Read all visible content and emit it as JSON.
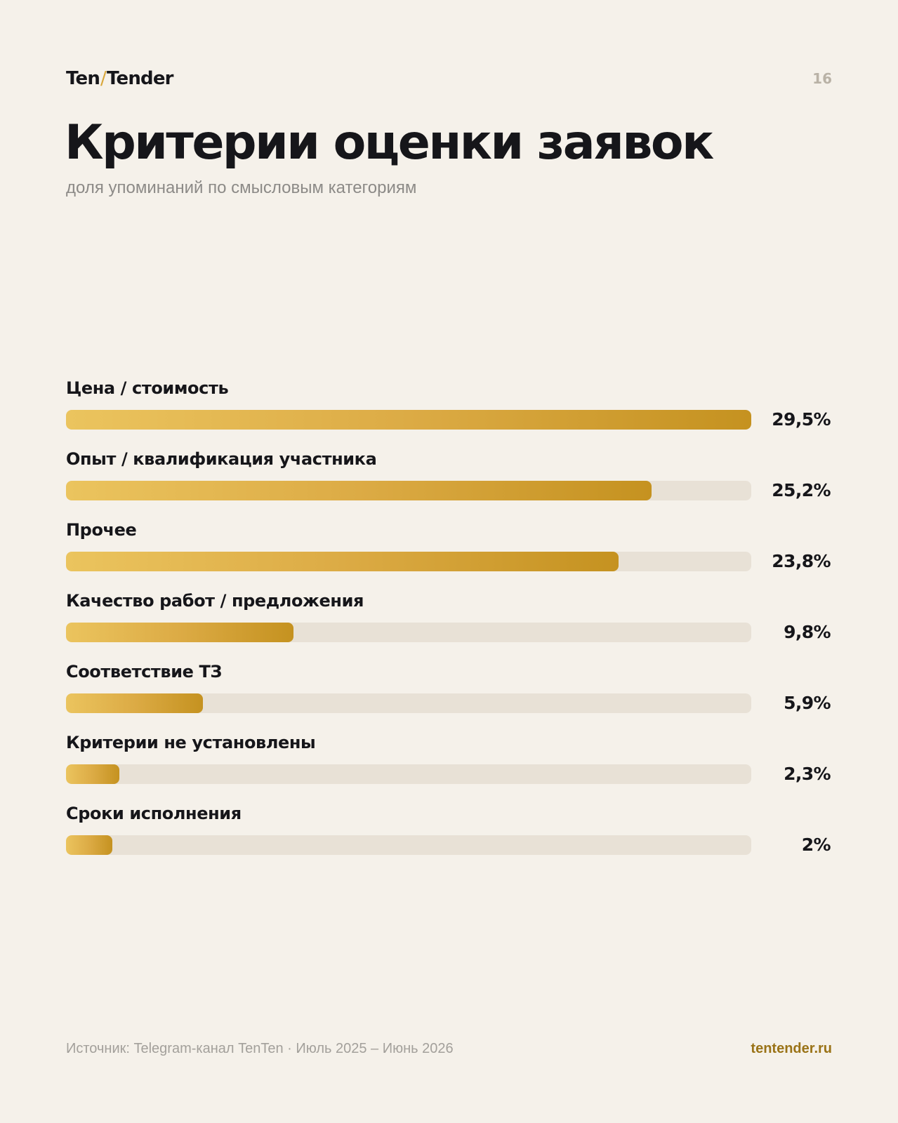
{
  "header": {
    "logo_left": "Ten",
    "logo_sep": "/",
    "logo_right": "Tender",
    "page_number": "16"
  },
  "colors": {
    "background": "#f5f1ea",
    "bar_start": "#ebc45e",
    "bar_end": "#c59220",
    "track": "#e8e1d6",
    "accent_link": "#9a7317"
  },
  "chart_data": {
    "type": "bar",
    "orientation": "horizontal",
    "title": "Критерии оценки заявок",
    "subtitle": "доля упоминаний по смысловым категориям",
    "unit": "%",
    "xlim": [
      0,
      29.5
    ],
    "grid": false,
    "legend": "none",
    "categories": [
      "Цена / стоимость",
      "Опыт / квалификация участника",
      "Прочее",
      "Качество работ / предложения",
      "Соответствие ТЗ",
      "Критерии не установлены",
      "Сроки исполнения"
    ],
    "values": [
      29.5,
      25.2,
      23.8,
      9.8,
      5.9,
      2.3,
      2
    ],
    "value_labels": [
      "29,5%",
      "25,2%",
      "23,8%",
      "9,8%",
      "5,9%",
      "2,3%",
      "2%"
    ]
  },
  "footer": {
    "source": "Источник: Telegram-канал TenTen · Июль 2025 – Июнь 2026",
    "site": "tentender.ru"
  }
}
